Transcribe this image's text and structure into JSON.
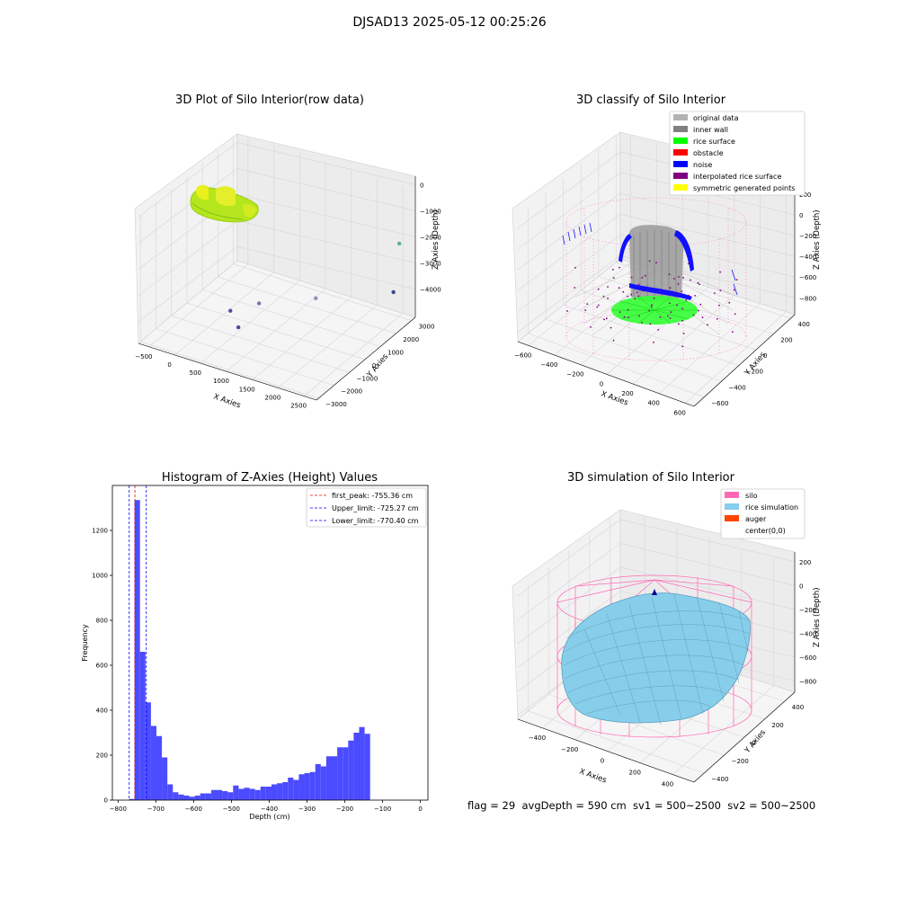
{
  "suptitle": "DJSAD13 2025-05-12 00:25:26",
  "footer": "flag = 29  avgDepth = 590 cm  sv1 = 500~2500  sv2 = 500~2500",
  "chart_data": [
    {
      "type": "scatter",
      "title": "3D Plot of Silo Interior(row data)",
      "xlabel": "X Axies",
      "ylabel": "Y Axies",
      "zlabel": "Z Axies (Depth)",
      "x_ticks": [
        "−500",
        "0",
        "500",
        "1000",
        "1500",
        "2000",
        "2500"
      ],
      "y_ticks": [
        "3000",
        "2000",
        "1000",
        "0",
        "−1000",
        "−2000",
        "−3000"
      ],
      "z_ticks": [
        "0",
        "−1000",
        "−2000",
        "−3000",
        "−4000"
      ],
      "points": [
        {
          "x": 200,
          "y": -300,
          "z": -4300
        },
        {
          "x": 500,
          "y": -800,
          "z": -4500
        },
        {
          "x": 600,
          "y": 200,
          "z": -4000
        },
        {
          "x": 1300,
          "y": 1500,
          "z": -4000
        },
        {
          "x": 2400,
          "y": 2800,
          "z": -3700
        },
        {
          "x": 2600,
          "y": 2500,
          "z": -1500
        }
      ]
    },
    {
      "type": "scatter",
      "title": "3D classify of Silo Interior",
      "xlabel": "X Axies",
      "ylabel": "Y Axies",
      "zlabel": "Z Axies (Depth)",
      "x_ticks": [
        "−600",
        "−400",
        "−200",
        "0",
        "200",
        "400",
        "600"
      ],
      "y_ticks": [
        "400",
        "200",
        "0",
        "−200",
        "−400",
        "−600"
      ],
      "z_ticks": [
        "200",
        "0",
        "−200",
        "−400",
        "−600",
        "−800"
      ],
      "legend_position": "top-right",
      "legend": [
        {
          "label": "original data",
          "color": "#b3b3b3"
        },
        {
          "label": "inner wall",
          "color": "#808080"
        },
        {
          "label": "rice surface",
          "color": "#00ff00"
        },
        {
          "label": "obstacle",
          "color": "#ff0000"
        },
        {
          "label": "noise",
          "color": "#0000ff"
        },
        {
          "label": "interpolated rice surface",
          "color": "#800080"
        },
        {
          "label": "symmetric generated points",
          "color": "#ffff00"
        }
      ]
    },
    {
      "type": "bar",
      "title": "Histogram of Z-Axies (Height) Values",
      "xlabel": "Depth (cm)",
      "ylabel": "Frequency",
      "xlim": [
        -815,
        20
      ],
      "ylim": [
        0,
        1400
      ],
      "x_ticks": [
        -800,
        -700,
        -600,
        -500,
        -400,
        -300,
        -200,
        -100,
        0
      ],
      "y_ticks": [
        0,
        200,
        400,
        600,
        800,
        1000,
        1200
      ],
      "bin_width": 14.5,
      "bin_start": -771,
      "values": [
        5,
        1335,
        660,
        435,
        330,
        285,
        190,
        70,
        35,
        25,
        20,
        15,
        20,
        30,
        30,
        45,
        45,
        40,
        35,
        65,
        50,
        55,
        50,
        45,
        60,
        60,
        70,
        75,
        80,
        100,
        90,
        115,
        120,
        125,
        160,
        150,
        195,
        195,
        235,
        235,
        265,
        300,
        325,
        295
      ],
      "bar_color": "#4b4bff",
      "lines": [
        {
          "label": "first_peak: -755.36 cm",
          "x": -755.36,
          "color": "#ff0000"
        },
        {
          "label": "Upper_limit: -725.27 cm",
          "x": -725.27,
          "color": "#0000ff"
        },
        {
          "label": "Lower_limit: -770.40 cm",
          "x": -770.4,
          "color": "#0000ff"
        }
      ],
      "legend_position": "top-right"
    },
    {
      "type": "surface",
      "title": "3D simulation of Silo Interior",
      "xlabel": "X Axies",
      "ylabel": "Y Axies",
      "zlabel": "Z Axies (Depth)",
      "x_ticks": [
        "−400",
        "−200",
        "0",
        "200",
        "400"
      ],
      "y_ticks": [
        "400",
        "200",
        "0",
        "−200",
        "−400"
      ],
      "z_ticks": [
        "200",
        "0",
        "−200",
        "−400",
        "−600",
        "−800"
      ],
      "legend_position": "top-right",
      "legend": [
        {
          "label": "silo",
          "color": "#ff69b4"
        },
        {
          "label": "rice simulation",
          "color": "#87ceeb"
        },
        {
          "label": "auger",
          "color": "#ff4500"
        },
        {
          "label": "center(0,0)",
          "color": "#ffffff"
        }
      ]
    }
  ]
}
